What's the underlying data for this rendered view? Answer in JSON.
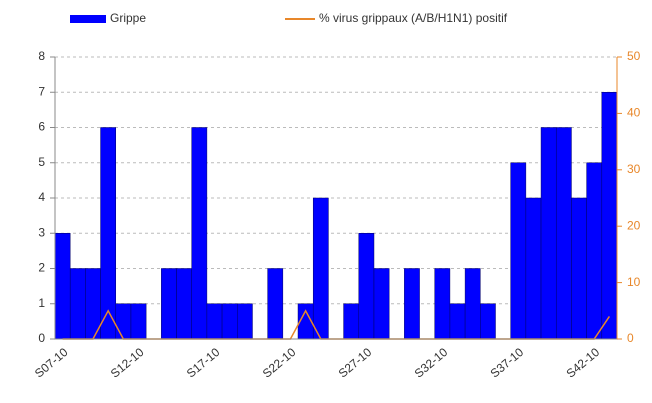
{
  "chart_data": {
    "type": "bar",
    "categories": [
      "S07-10",
      null,
      null,
      null,
      null,
      "S12-10",
      null,
      null,
      null,
      null,
      "S17-10",
      null,
      null,
      null,
      null,
      "S22-10",
      null,
      null,
      null,
      null,
      "S27-10",
      null,
      null,
      null,
      null,
      "S32-10",
      null,
      null,
      null,
      null,
      "S37-10",
      null,
      null,
      null,
      null,
      "S42-10",
      null
    ],
    "series": [
      {
        "name": "Grippe",
        "color": "#0000ff",
        "values": [
          3,
          2,
          2,
          6,
          1,
          1,
          0,
          2,
          2,
          6,
          1,
          1,
          1,
          0,
          2,
          0,
          1,
          4,
          0,
          1,
          3,
          2,
          0,
          2,
          0,
          2,
          1,
          2,
          1,
          0,
          5,
          4,
          6,
          6,
          4,
          5,
          7
        ]
      },
      {
        "name": "% virus grippaux (A/B/H1N1) positif",
        "color": "#e8872a",
        "axis": "y2",
        "type": "line",
        "values": [
          0,
          0,
          0,
          5,
          0,
          0,
          0,
          0,
          0,
          0,
          0,
          0,
          0,
          0,
          0,
          0,
          5,
          0,
          0,
          0,
          0,
          0,
          0,
          0,
          0,
          0,
          0,
          0,
          0,
          0,
          0,
          0,
          0,
          0,
          0,
          0,
          4
        ]
      }
    ],
    "ylim": [
      0,
      8
    ],
    "yticks": [
      0,
      1,
      2,
      3,
      4,
      5,
      6,
      7,
      8
    ],
    "y2lim": [
      0,
      50
    ],
    "y2ticks": [
      0,
      10,
      20,
      30,
      40,
      50
    ],
    "grid": true,
    "legend": "top"
  }
}
